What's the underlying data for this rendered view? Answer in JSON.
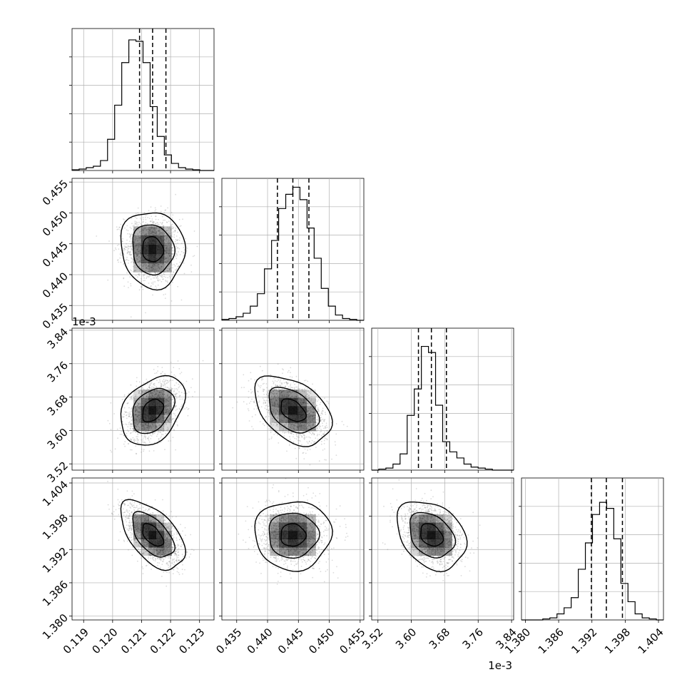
{
  "chart_data": {
    "type": "corner",
    "parameters": [
      {
        "range": [
          0.1186,
          0.1235
        ],
        "ticks": [
          "0.119",
          "0.120",
          "0.121",
          "0.122",
          "0.123"
        ],
        "tick_values": [
          0.119,
          0.12,
          0.121,
          0.122,
          0.123
        ],
        "quantiles": [
          0.12093,
          0.12138,
          0.12184
        ],
        "hist_counts": [
          0.5,
          1,
          2,
          3,
          7,
          22,
          46,
          76,
          92,
          91,
          76,
          45,
          24,
          11,
          5,
          2,
          1,
          0.5,
          0,
          0
        ],
        "hist_max": 100
      },
      {
        "range": [
          0.4326,
          0.4556
        ],
        "ticks": [
          "0.435",
          "0.440",
          "0.445",
          "0.450",
          "0.455"
        ],
        "tick_values": [
          0.435,
          0.44,
          0.445,
          0.45,
          0.455
        ],
        "quantiles": [
          0.4416,
          0.4441,
          0.4467
        ],
        "hist_counts": [
          0.5,
          1,
          2,
          4,
          8,
          15,
          29,
          45,
          63,
          71,
          75,
          68,
          52,
          35,
          18,
          8,
          3,
          1,
          0.5,
          0
        ],
        "hist_max": 80
      },
      {
        "range": [
          3.505,
          3.845
        ],
        "ticks": [
          "3.52",
          "3.60",
          "3.68",
          "3.76",
          "3.84"
        ],
        "tick_values": [
          3.52,
          3.6,
          3.68,
          3.76,
          3.84
        ],
        "quantiles": [
          3.617,
          3.648,
          3.684
        ],
        "hist_counts": [
          0,
          0.5,
          1,
          3,
          8,
          27,
          40,
          61,
          58,
          32,
          14,
          9,
          6,
          3,
          1.5,
          1,
          0.5,
          0,
          0,
          0
        ],
        "hist_max": 70
      },
      {
        "range": [
          1.3793,
          1.4049
        ],
        "ticks": [
          "1.380",
          "1.386",
          "1.392",
          "1.398",
          "1.404"
        ],
        "tick_values": [
          1.38,
          1.386,
          1.392,
          1.398,
          1.404
        ],
        "quantiles": [
          1.3919,
          1.3946,
          1.3975
        ],
        "hist_counts": [
          0,
          0,
          0,
          0.5,
          1,
          3,
          6,
          11,
          25,
          38,
          52,
          58,
          55,
          40,
          18,
          9,
          3,
          1,
          0.5,
          0
        ],
        "hist_max": 70
      }
    ],
    "pairs": [
      {
        "x": 0,
        "y": 1,
        "cx": 0.12138,
        "cy": 0.4441,
        "sx": 0.00048,
        "sy": 0.0027,
        "rho": -0.08
      },
      {
        "x": 0,
        "y": 2,
        "cx": 0.12138,
        "cy": 3.648,
        "sx": 0.00048,
        "sy": 0.036,
        "rho": 0.35
      },
      {
        "x": 1,
        "y": 2,
        "cx": 0.4441,
        "cy": 3.648,
        "sx": 0.0027,
        "sy": 0.036,
        "rho": -0.42
      },
      {
        "x": 0,
        "y": 3,
        "cx": 0.12138,
        "cy": 1.3946,
        "sx": 0.00048,
        "sy": 0.0027,
        "rho": -0.55
      },
      {
        "x": 1,
        "y": 3,
        "cx": 0.4441,
        "cy": 1.3946,
        "sx": 0.0027,
        "sy": 0.0027,
        "rho": 0.0
      },
      {
        "x": 2,
        "y": 3,
        "cx": 3.648,
        "cy": 1.3946,
        "sx": 0.036,
        "sy": 0.0027,
        "rho": -0.3
      }
    ],
    "offset_labels": {
      "y_row3": "1e-3",
      "x_col3": "1e-3"
    },
    "grid": true,
    "colors": {
      "points": "#7f7f7f",
      "contour": "#000000",
      "grid": "#b0b0b0",
      "density": "#000000"
    }
  }
}
